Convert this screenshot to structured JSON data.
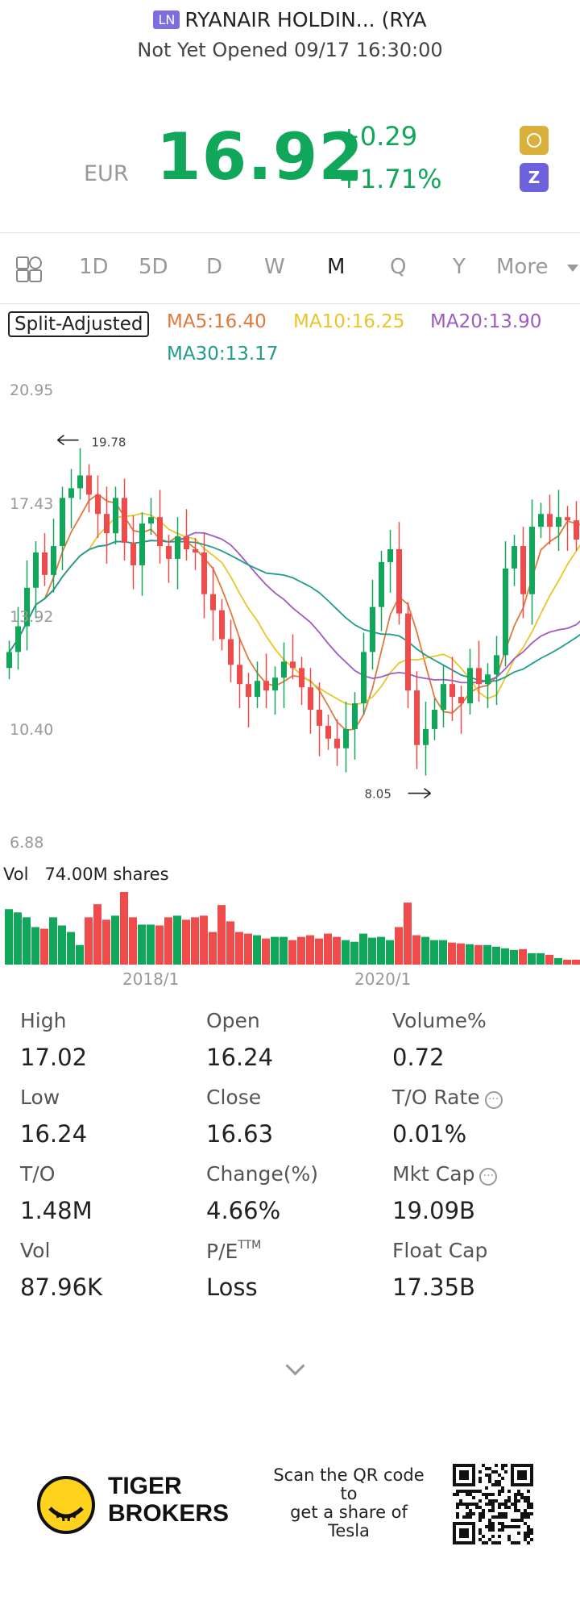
{
  "header": {
    "exchange_badge": "LN",
    "title": "RYANAIR HOLDIN... (RYA",
    "status": "Not Yet Opened 09/17 16:30:00"
  },
  "quote": {
    "currency": "EUR",
    "price": "16.92",
    "change": "+0.29",
    "change_pct": "+1.71%",
    "up_color": "#11a75a",
    "down_color": "#f04b4b"
  },
  "tabs": [
    "1D",
    "5D",
    "D",
    "W",
    "M",
    "Q",
    "Y",
    "More"
  ],
  "active_tab": "M",
  "ma_legend": {
    "adjust_label": "Split-Adjusted",
    "ma5": "MA5:16.40",
    "ma10": "MA10:16.25",
    "ma20": "MA20:13.90",
    "ma30": "MA30:13.17",
    "colors": {
      "ma5": "#e07a3c",
      "ma10": "#e8c62a",
      "ma20": "#9c5cc2",
      "ma30": "#1f9c8a"
    }
  },
  "chart_data": {
    "type": "candlestick",
    "y_ticks": [
      "20.95",
      "17.43",
      "13.92",
      "10.40",
      "6.88"
    ],
    "ylim": [
      6.88,
      20.95
    ],
    "high_marker": "19.78",
    "low_marker": "8.05",
    "x_ticks": [
      "2018/1",
      "2020/1"
    ],
    "volume_label": "Vol",
    "volume_value": "74.00M shares",
    "closes": [
      12.8,
      13.6,
      14.8,
      15.9,
      15.2,
      16.1,
      17.6,
      17.9,
      18.3,
      17.7,
      17.1,
      16.5,
      17.6,
      16.2,
      15.5,
      16.8,
      17.0,
      16.1,
      15.7,
      16.4,
      16.0,
      15.9,
      14.6,
      14.1,
      13.2,
      12.4,
      11.8,
      11.4,
      11.9,
      11.6,
      12.0,
      12.5,
      12.3,
      11.7,
      11.0,
      10.5,
      10.1,
      9.8,
      10.4,
      11.2,
      12.8,
      14.2,
      15.6,
      16.0,
      14.0,
      11.6,
      9.9,
      10.4,
      11.0,
      11.8,
      11.4,
      11.2,
      12.3,
      11.8,
      12.1,
      12.7,
      15.4,
      16.1,
      14.6,
      16.7,
      17.1,
      16.7,
      17.0,
      16.9,
      16.3,
      16.7,
      16.9
    ],
    "opens": [
      12.3,
      12.8,
      13.6,
      14.8,
      15.9,
      15.2,
      16.1,
      17.6,
      17.9,
      18.3,
      17.7,
      17.1,
      16.5,
      17.6,
      16.2,
      15.5,
      16.8,
      17.0,
      16.1,
      15.7,
      16.4,
      16.0,
      15.9,
      14.6,
      14.1,
      13.2,
      12.4,
      11.8,
      11.4,
      11.9,
      11.6,
      12.0,
      12.5,
      12.3,
      11.7,
      11.0,
      10.5,
      10.1,
      9.8,
      10.4,
      11.2,
      12.8,
      14.2,
      15.6,
      16.0,
      14.0,
      11.6,
      9.9,
      10.4,
      11.0,
      11.8,
      11.4,
      11.2,
      12.3,
      11.8,
      12.1,
      12.7,
      15.4,
      16.1,
      14.6,
      16.7,
      17.1,
      16.7,
      17.0,
      16.9,
      16.3,
      16.63
    ],
    "volumes": [
      68,
      64,
      58,
      46,
      44,
      58,
      48,
      40,
      24,
      58,
      74,
      55,
      60,
      89,
      58,
      49,
      49,
      48,
      58,
      60,
      55,
      58,
      60,
      40,
      73,
      53,
      40,
      38,
      36,
      32,
      34,
      34,
      30,
      34,
      36,
      32,
      38,
      34,
      30,
      28,
      38,
      33,
      34,
      30,
      46,
      76,
      36,
      34,
      30,
      30,
      27,
      26,
      25,
      24,
      24,
      22,
      20,
      18,
      19,
      14,
      14,
      12,
      8,
      6,
      6,
      5,
      4
    ]
  },
  "stats": [
    {
      "label": "High",
      "value": "17.02"
    },
    {
      "label": "Open",
      "value": "16.24"
    },
    {
      "label": "Volume%",
      "value": "0.72"
    },
    {
      "label": "Low",
      "value": "16.24"
    },
    {
      "label": "Close",
      "value": "16.63"
    },
    {
      "label": "T/O Rate",
      "value": "0.01%"
    },
    {
      "label": "T/O",
      "value": "1.48M"
    },
    {
      "label": "Change(%)",
      "value": "4.66%"
    },
    {
      "label": "Mkt Cap",
      "value": "19.09B"
    },
    {
      "label": "Vol",
      "value": "87.96K"
    },
    {
      "label": "P/E",
      "value": "Loss"
    },
    {
      "label": "Float Cap",
      "value": "17.35B"
    }
  ],
  "pe_superscript": "TTM",
  "footer": {
    "brand_line1": "TIGER",
    "brand_line2": "BROKERS",
    "scan_text": [
      "Scan the QR code",
      "to",
      "get a share of",
      "Tesla"
    ]
  }
}
